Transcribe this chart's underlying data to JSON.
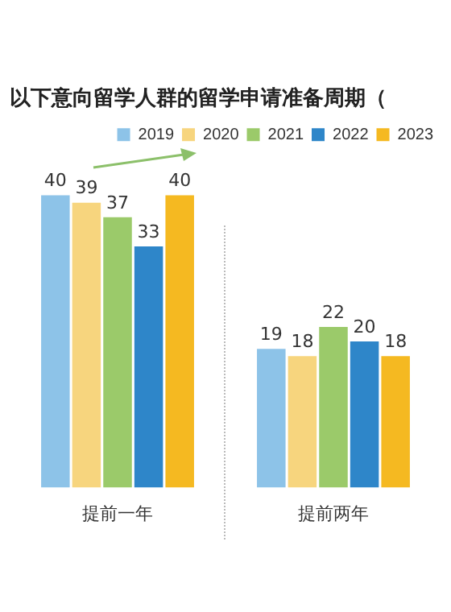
{
  "chart_data": {
    "type": "bar",
    "title": "以下意向留学人群的留学申请准备周期（",
    "categories": [
      "提前一年",
      "提前两年"
    ],
    "series": [
      {
        "name": "2019",
        "color": "#8dc3e8",
        "values": [
          40,
          19
        ]
      },
      {
        "name": "2020",
        "color": "#f7d57e",
        "values": [
          39,
          18
        ]
      },
      {
        "name": "2021",
        "color": "#9bca6a",
        "values": [
          37,
          22
        ]
      },
      {
        "name": "2022",
        "color": "#2e86c9",
        "values": [
          33,
          20
        ]
      },
      {
        "name": "2023",
        "color": "#f5b921",
        "values": [
          40,
          18
        ]
      }
    ],
    "data_labels": true,
    "legend": "top right",
    "grid": false,
    "tick_labels": "x"
  }
}
